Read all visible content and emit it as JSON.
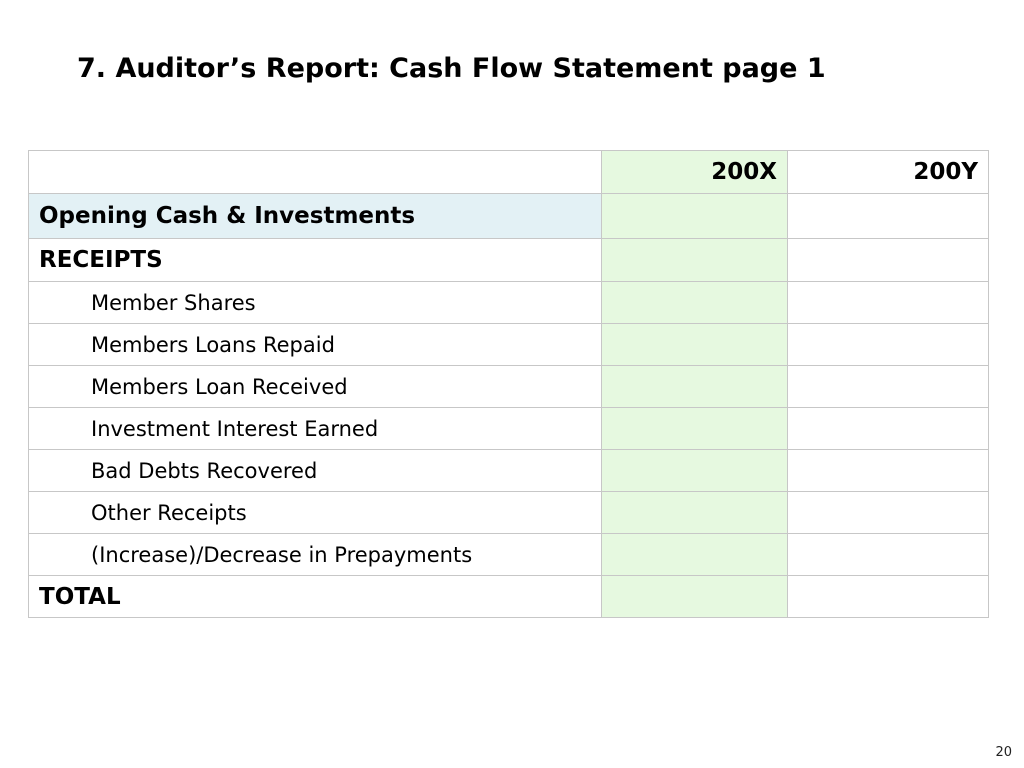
{
  "title": "7. Auditor’s Report: Cash Flow Statement page 1",
  "table": {
    "columns": [
      "",
      "200X",
      "200Y"
    ],
    "opening_label": "Opening Cash & Investments",
    "receipts_label": "RECEIPTS",
    "receipt_items": [
      "Member Shares",
      "Members Loans Repaid",
      "Members Loan Received",
      "Investment Interest Earned",
      "Bad Debts Recovered",
      "Other Receipts",
      "(Increase)/Decrease in Prepayments"
    ],
    "total_label": "TOTAL"
  },
  "colors": {
    "year_x_column_fill": "#e6f9e0",
    "opening_row_fill": "#e3f1f5",
    "grid_line": "#c7c7c7"
  },
  "page_number": "20"
}
